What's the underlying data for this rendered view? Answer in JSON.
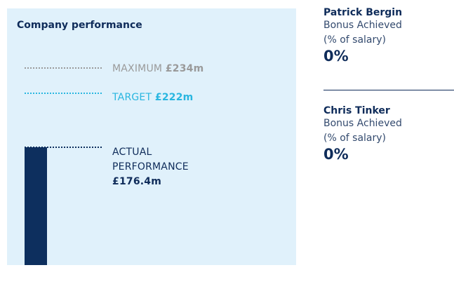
{
  "panel": {
    "title": "Company performance",
    "levels": [
      {
        "label": "MAXIMUM",
        "value": "£234m"
      },
      {
        "label": "TARGET",
        "value": "£222m"
      },
      {
        "label": "ACTUAL PERFORMANCE",
        "value": "£176.4m"
      }
    ]
  },
  "people": [
    {
      "name": "Patrick Bergin",
      "caption": "Bonus Achieved",
      "note": "(% of salary)",
      "value": "0%"
    },
    {
      "name": "Chris Tinker",
      "caption": "Bonus Achieved",
      "note": "(% of salary)",
      "value": "0%"
    }
  ]
}
